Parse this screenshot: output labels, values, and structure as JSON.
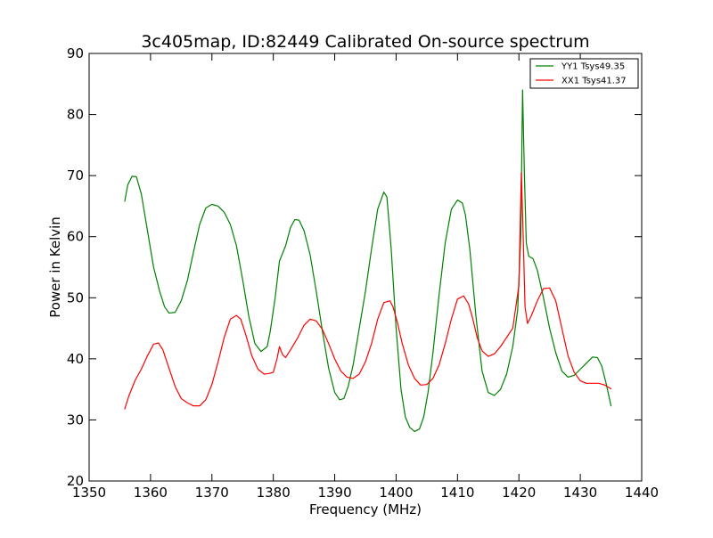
{
  "chart_data": {
    "type": "line",
    "title": "3c405map, ID:82449 Calibrated On-source spectrum",
    "xlabel": "Frequency (MHz)",
    "ylabel": "Power in Kelvin",
    "xlim": [
      1350,
      1440
    ],
    "ylim": [
      20,
      90
    ],
    "xticks": [
      1350,
      1360,
      1370,
      1380,
      1390,
      1400,
      1410,
      1420,
      1430,
      1440
    ],
    "yticks": [
      20,
      30,
      40,
      50,
      60,
      70,
      80,
      90
    ],
    "grid": false,
    "legend_position": "top-right",
    "series": [
      {
        "name": "YY1 Tsys49.35",
        "color": "#008000",
        "x": [
          1355.8,
          1356.3,
          1357.0,
          1357.7,
          1358.5,
          1359.5,
          1360.5,
          1361.5,
          1362.3,
          1363.0,
          1364.0,
          1365.0,
          1366.0,
          1367.0,
          1368.0,
          1369.0,
          1370.0,
          1371.0,
          1372.0,
          1373.0,
          1374.0,
          1375.0,
          1376.0,
          1377.0,
          1378.0,
          1379.0,
          1379.5,
          1380.3,
          1381.0,
          1382.0,
          1382.8,
          1383.5,
          1384.2,
          1385.0,
          1386.0,
          1387.0,
          1388.0,
          1389.0,
          1390.0,
          1390.8,
          1391.5,
          1392.2,
          1393.0,
          1394.0,
          1395.0,
          1396.0,
          1397.0,
          1398.0,
          1398.5,
          1399.2,
          1400.0,
          1400.8,
          1401.5,
          1402.2,
          1403.0,
          1403.8,
          1404.5,
          1405.2,
          1406.0,
          1407.0,
          1408.0,
          1409.0,
          1410.0,
          1410.8,
          1411.3,
          1412.0,
          1413.0,
          1414.0,
          1415.0,
          1416.0,
          1417.0,
          1418.0,
          1419.0,
          1419.8,
          1420.3,
          1420.6,
          1420.9,
          1421.2,
          1421.6,
          1422.3,
          1423.0,
          1424.0,
          1425.0,
          1426.0,
          1427.0,
          1428.0,
          1429.0,
          1430.0,
          1431.0,
          1432.0,
          1432.8,
          1433.5,
          1434.2,
          1435.0
        ],
        "values": [
          65.8,
          68.5,
          69.9,
          69.8,
          67.0,
          61.0,
          55.0,
          51.0,
          48.5,
          47.5,
          47.6,
          49.5,
          52.8,
          57.5,
          62.0,
          64.7,
          65.3,
          65.0,
          64.0,
          62.0,
          58.5,
          53.0,
          47.0,
          42.5,
          41.2,
          42.0,
          44.5,
          50.0,
          56.0,
          58.5,
          61.5,
          62.8,
          62.7,
          61.0,
          57.0,
          51.0,
          44.5,
          38.5,
          34.5,
          33.3,
          33.5,
          35.5,
          39.0,
          45.0,
          51.0,
          58.0,
          64.5,
          67.3,
          66.5,
          58.0,
          45.0,
          35.0,
          30.5,
          28.8,
          28.1,
          28.5,
          30.5,
          34.5,
          41.0,
          50.5,
          59.0,
          64.5,
          66.0,
          65.5,
          63.5,
          58.0,
          47.0,
          38.0,
          34.5,
          34.0,
          35.0,
          37.5,
          42.0,
          48.0,
          60.0,
          84.0,
          70.0,
          59.0,
          56.8,
          56.4,
          54.5,
          50.0,
          45.0,
          41.0,
          38.0,
          37.0,
          37.3,
          38.3,
          39.3,
          40.3,
          40.2,
          38.8,
          36.0,
          32.3
        ]
      },
      {
        "name": "XX1 Tsys41.37",
        "color": "#ff0000",
        "x": [
          1355.8,
          1356.5,
          1357.5,
          1358.5,
          1359.5,
          1360.5,
          1361.3,
          1362.0,
          1363.0,
          1364.0,
          1365.0,
          1366.0,
          1367.0,
          1368.0,
          1369.0,
          1370.0,
          1371.0,
          1372.0,
          1373.0,
          1374.0,
          1374.7,
          1375.5,
          1376.5,
          1377.5,
          1378.5,
          1379.3,
          1380.0,
          1380.6,
          1381.0,
          1381.5,
          1382.0,
          1383.0,
          1384.0,
          1385.0,
          1386.0,
          1387.0,
          1388.0,
          1389.0,
          1390.0,
          1391.0,
          1392.0,
          1393.0,
          1394.0,
          1395.0,
          1396.0,
          1397.0,
          1398.0,
          1399.0,
          1399.5,
          1400.2,
          1401.0,
          1402.0,
          1403.0,
          1404.0,
          1405.0,
          1406.0,
          1407.0,
          1408.0,
          1409.0,
          1410.0,
          1411.0,
          1411.8,
          1412.5,
          1413.2,
          1414.0,
          1415.0,
          1416.0,
          1417.0,
          1418.0,
          1419.0,
          1420.0,
          1420.4,
          1420.7,
          1421.0,
          1421.4,
          1422.0,
          1423.0,
          1424.0,
          1425.0,
          1426.0,
          1427.0,
          1428.0,
          1429.0,
          1430.0,
          1431.0,
          1432.0,
          1433.0,
          1434.0,
          1435.0
        ],
        "values": [
          31.8,
          34.0,
          36.5,
          38.3,
          40.5,
          42.4,
          42.6,
          41.5,
          38.5,
          35.5,
          33.5,
          32.8,
          32.3,
          32.3,
          33.3,
          35.8,
          39.5,
          43.5,
          46.5,
          47.1,
          46.5,
          44.0,
          40.5,
          38.3,
          37.5,
          37.6,
          37.8,
          40.0,
          42.0,
          40.7,
          40.2,
          41.8,
          43.5,
          45.5,
          46.5,
          46.2,
          44.8,
          42.5,
          40.0,
          38.0,
          37.0,
          36.8,
          37.5,
          39.5,
          42.5,
          46.5,
          49.2,
          49.5,
          48.5,
          46.0,
          42.5,
          39.0,
          36.8,
          35.7,
          35.8,
          36.8,
          39.0,
          42.5,
          46.5,
          49.8,
          50.3,
          49.0,
          46.5,
          43.5,
          41.3,
          40.4,
          40.8,
          42.0,
          43.5,
          45.0,
          52.0,
          70.5,
          60.0,
          48.5,
          45.8,
          47.0,
          49.5,
          51.5,
          51.6,
          49.5,
          45.0,
          40.5,
          37.8,
          36.4,
          36.0,
          36.0,
          36.0,
          35.7,
          35.1
        ]
      }
    ]
  }
}
